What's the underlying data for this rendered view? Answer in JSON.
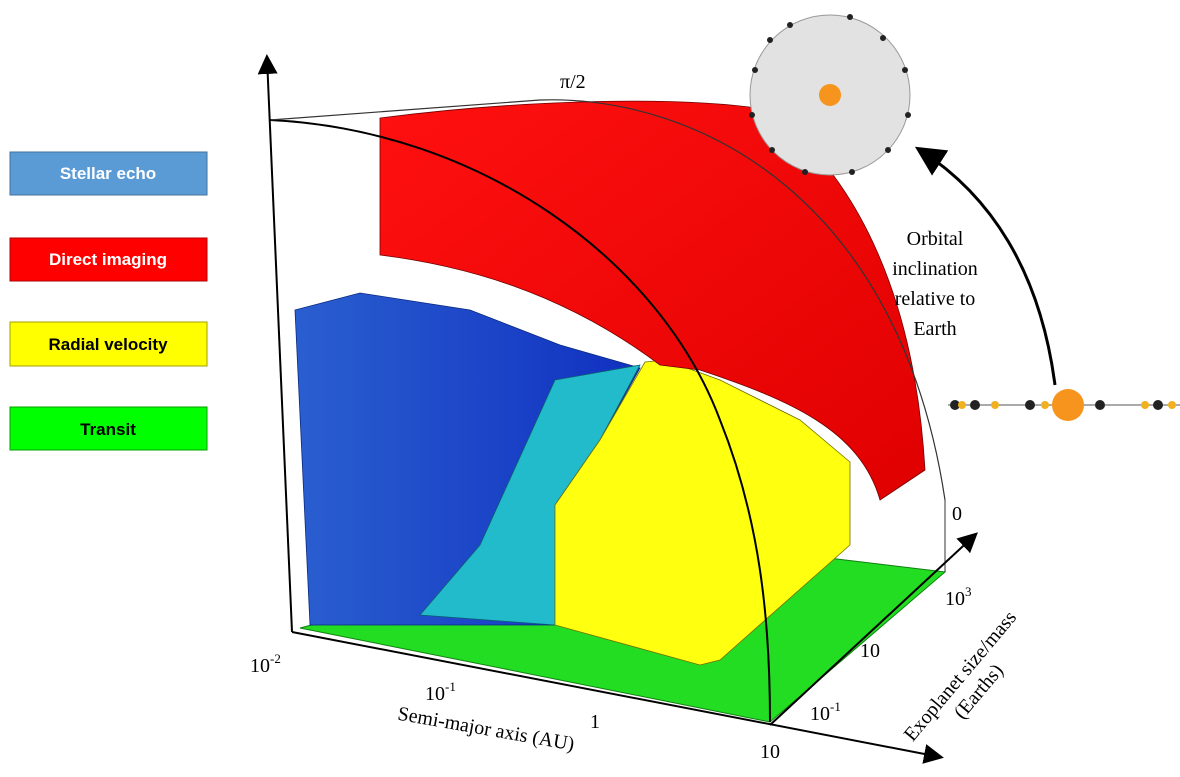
{
  "legend": [
    {
      "label": "Stellar echo"
    },
    {
      "label": "Direct imaging"
    },
    {
      "label": "Radial velocity"
    },
    {
      "label": "Transit"
    }
  ],
  "axes": {
    "x": {
      "label": "Semi-major axis (AU)",
      "ticks": [
        {
          "base": "10",
          "exp": "-2"
        },
        {
          "base": "10",
          "exp": "-1"
        },
        {
          "base": "1"
        },
        {
          "base": "10"
        }
      ]
    },
    "y": {
      "label": [
        "Exoplanet size/mass",
        "(Earths)"
      ],
      "ticks": [
        {
          "base": "10",
          "exp": "-1"
        },
        {
          "base": "10"
        },
        {
          "base": "10",
          "exp": "3"
        }
      ]
    },
    "z": {
      "ticks": [
        {
          "base": "0"
        },
        {
          "base": "π/2"
        }
      ]
    }
  },
  "annotation": [
    "Orbital",
    "inclination",
    "relative to",
    "Earth"
  ]
}
